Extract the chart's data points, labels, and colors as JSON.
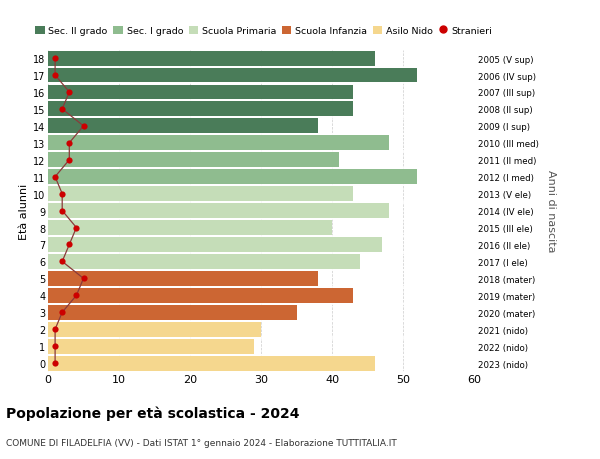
{
  "ages": [
    18,
    17,
    16,
    15,
    14,
    13,
    12,
    11,
    10,
    9,
    8,
    7,
    6,
    5,
    4,
    3,
    2,
    1,
    0
  ],
  "years": [
    "2005 (V sup)",
    "2006 (IV sup)",
    "2007 (III sup)",
    "2008 (II sup)",
    "2009 (I sup)",
    "2010 (III med)",
    "2011 (II med)",
    "2012 (I med)",
    "2013 (V ele)",
    "2014 (IV ele)",
    "2015 (III ele)",
    "2016 (II ele)",
    "2017 (I ele)",
    "2018 (mater)",
    "2019 (mater)",
    "2020 (mater)",
    "2021 (nido)",
    "2022 (nido)",
    "2023 (nido)"
  ],
  "values": [
    46,
    52,
    43,
    43,
    38,
    48,
    41,
    52,
    43,
    48,
    40,
    47,
    44,
    38,
    43,
    35,
    30,
    29,
    46
  ],
  "stranieri": [
    1,
    1,
    3,
    2,
    5,
    3,
    3,
    1,
    2,
    2,
    4,
    3,
    2,
    5,
    4,
    2,
    1,
    1,
    1
  ],
  "bar_colors": [
    "#4a7c59",
    "#4a7c59",
    "#4a7c59",
    "#4a7c59",
    "#4a7c59",
    "#8fbc8f",
    "#8fbc8f",
    "#8fbc8f",
    "#c5ddb8",
    "#c5ddb8",
    "#c5ddb8",
    "#c5ddb8",
    "#c5ddb8",
    "#cc6633",
    "#cc6633",
    "#cc6633",
    "#f5d78e",
    "#f5d78e",
    "#f5d78e"
  ],
  "legend_labels": [
    "Sec. II grado",
    "Sec. I grado",
    "Scuola Primaria",
    "Scuola Infanzia",
    "Asilo Nido",
    "Stranieri"
  ],
  "legend_colors": [
    "#4a7c59",
    "#8fbc8f",
    "#c5ddb8",
    "#cc6633",
    "#f5d78e",
    "#cc0000"
  ],
  "stranieri_color": "#cc0000",
  "stranieri_line_color": "#8b3a3a",
  "ylabel": "Età alunni",
  "ylabel2": "Anni di nascita",
  "title": "Popolazione per età scolastica - 2024",
  "subtitle": "COMUNE DI FILADELFIA (VV) - Dati ISTAT 1° gennaio 2024 - Elaborazione TUTTITALIA.IT",
  "xlim": [
    0,
    60
  ],
  "background_color": "#ffffff",
  "grid_color": "#cccccc"
}
